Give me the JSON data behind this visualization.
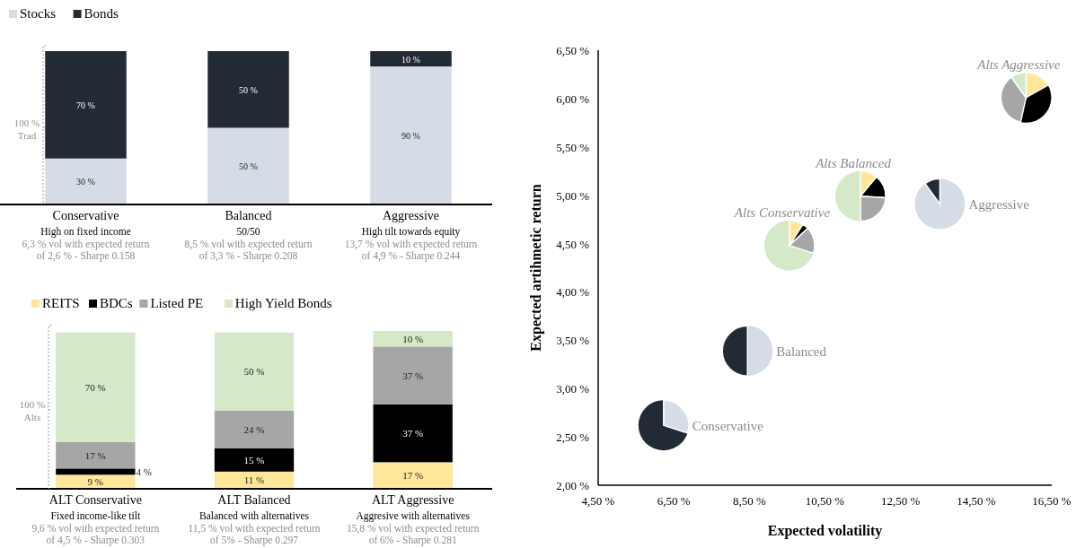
{
  "chart_data": [
    {
      "type": "bar",
      "stacked": true,
      "legend": "top left",
      "categories": [
        "Conservative\nHigh on fixed income\n6,3 % vol with expected return\nof 2,6 % - Sharpe 0.158",
        "Balanced\n50/50\n8,5 % vol with expected return\nof 3,3 % - Sharpe 0.208",
        "Aggressive\nHigh tilt towards equity\n13,7 % vol with expected return\nof 4,9 % - Sharpe 0.244"
      ],
      "series": [
        {
          "name": "Stocks",
          "color": "#d6dce5",
          "values": [
            30,
            50,
            90
          ],
          "value_labels": [
            "30 %",
            "50 %",
            "90 %"
          ]
        },
        {
          "name": "Bonds",
          "color": "#222a35",
          "values": [
            70,
            50,
            10
          ],
          "value_labels": [
            "70 %",
            "50 %",
            "10 %"
          ]
        }
      ],
      "annotations": [
        "100 %\nTrad"
      ]
    },
    {
      "type": "bar",
      "stacked": true,
      "legend": "top left",
      "categories": [
        "ALT Conservative\nFixed income-like tilt\n9,6 % vol with expected return\nof 4,5 %  - Sharpe 0.303",
        "ALT Balanced\nBalanced with alternatives\n11,5 % vol with expected return\nof 5% - Sharpe 0.297",
        "ALT Aggressive\nAggresive with alternatives\n15,8 % vol with expected return\nof 6% - Sharpe 0.281"
      ],
      "series": [
        {
          "name": "REITS",
          "color": "#ffe699",
          "values": [
            9,
            11,
            17
          ],
          "value_labels": [
            "9 %",
            "11 %",
            "17 %"
          ]
        },
        {
          "name": "BDCs",
          "color": "#000000",
          "values": [
            4,
            15,
            37
          ],
          "value_labels": [
            "4 %",
            "15 %",
            "37 %"
          ]
        },
        {
          "name": "Listed PE",
          "color": "#a6a6a6",
          "values": [
            17,
            24,
            37
          ],
          "value_labels": [
            "17 %",
            "24 %",
            "37 %"
          ]
        },
        {
          "name": "High Yield Bonds",
          "color": "#d5e8c8",
          "values": [
            70,
            50,
            10
          ],
          "value_labels": [
            "70 %",
            "50 %",
            "10 %"
          ]
        }
      ],
      "annotations": [
        "100 %\nAlts"
      ]
    },
    {
      "type": "scatter",
      "xlabel": "Expected volatility",
      "ylabel": "Expected artihmetic return",
      "xlim": [
        4.5,
        16.5
      ],
      "ylim": [
        2,
        6.5
      ],
      "xticks": [
        {
          "value": 4.5,
          "label": "4,50 %"
        },
        {
          "value": 6.5,
          "label": "6,50 %"
        },
        {
          "value": 8.5,
          "label": "8,50 %"
        },
        {
          "value": 10.5,
          "label": "10,50 %"
        },
        {
          "value": 12.5,
          "label": "12,50 %"
        },
        {
          "value": 14.5,
          "label": "14,50 %"
        },
        {
          "value": 16.5,
          "label": "16,50 %"
        }
      ],
      "yticks": [
        {
          "value": 2,
          "label": "2,00 %"
        },
        {
          "value": 2.5,
          "label": "2,50 %"
        },
        {
          "value": 3,
          "label": "3,00 %"
        },
        {
          "value": 3.5,
          "label": "3,50 %"
        },
        {
          "value": 4,
          "label": "4,00 %"
        },
        {
          "value": 4.5,
          "label": "4,50 %"
        },
        {
          "value": 5,
          "label": "5,00 %"
        },
        {
          "value": 5.5,
          "label": "5,50 %"
        },
        {
          "value": 6,
          "label": "6,00 %"
        },
        {
          "value": 6.5,
          "label": "6,50 %"
        }
      ],
      "series": [
        {
          "name": "Conservative",
          "color": "#222a35",
          "x": [
            6.23
          ],
          "values": [
            2.62
          ]
        },
        {
          "name": "Balanced",
          "color": "#d6dce5",
          "x": [
            8.45
          ],
          "values": [
            3.39
          ]
        },
        {
          "name": "Aggressive",
          "color": "#d6dce5",
          "x": [
            13.54
          ],
          "values": [
            4.91
          ]
        },
        {
          "name": "Alts Conservative",
          "color": "#d5e8c8",
          "x": [
            9.56
          ],
          "values": [
            4.48
          ]
        },
        {
          "name": "Alts Balanced",
          "color": "#d5e8c8",
          "x": [
            11.44
          ],
          "values": [
            4.99
          ]
        },
        {
          "name": "Alts Aggressive",
          "color": "#000000",
          "x": [
            15.82
          ],
          "values": [
            6.01
          ]
        }
      ]
    }
  ]
}
